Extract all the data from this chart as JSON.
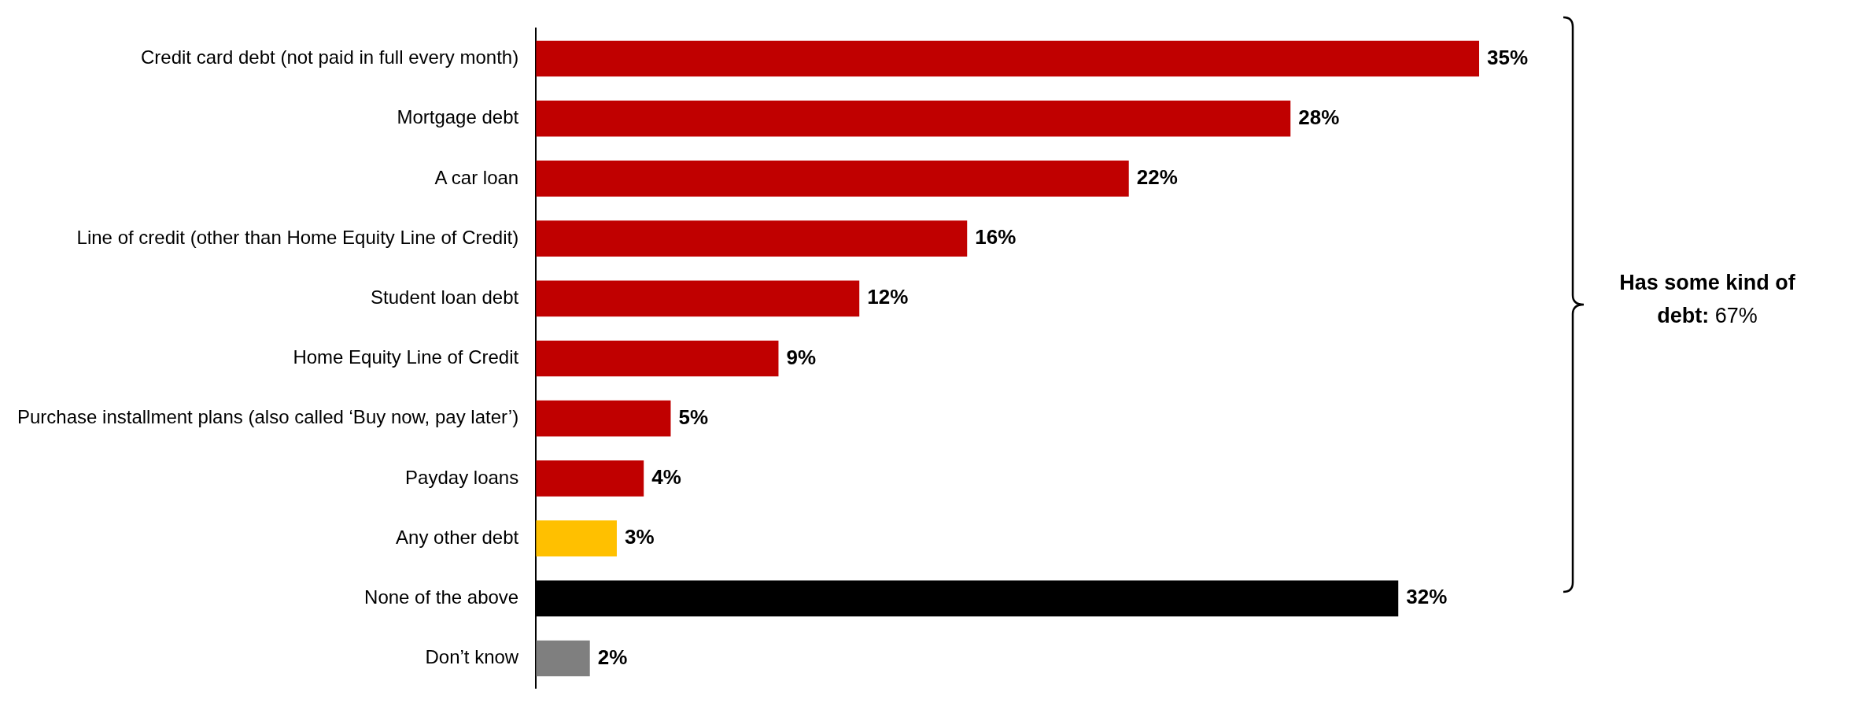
{
  "chart_data": {
    "type": "bar",
    "orientation": "horizontal",
    "categories": [
      "Credit card debt (not paid in full every month)",
      "Mortgage debt",
      "A car loan",
      "Line of credit (other than Home Equity Line of Credit)",
      "Student loan debt",
      "Home Equity Line of Credit",
      "Purchase installment plans (also called ‘Buy now, pay later’)",
      "Payday loans",
      "Any other debt",
      "None of the above",
      "Don’t know"
    ],
    "values": [
      35,
      28,
      22,
      16,
      12,
      9,
      5,
      4,
      3,
      32,
      2
    ],
    "colors": [
      "#c00000",
      "#c00000",
      "#c00000",
      "#c00000",
      "#c00000",
      "#c00000",
      "#c00000",
      "#c00000",
      "#ffc000",
      "#000000",
      "#7f7f7f"
    ],
    "value_labels": [
      "35%",
      "28%",
      "22%",
      "16%",
      "12%",
      "9%",
      "5%",
      "4%",
      "3%",
      "32%",
      "2%"
    ],
    "xlim": [
      0,
      35
    ],
    "tick_labels": "y",
    "legend": false,
    "annotations": [
      "Has some kind of debt: 67%"
    ]
  }
}
